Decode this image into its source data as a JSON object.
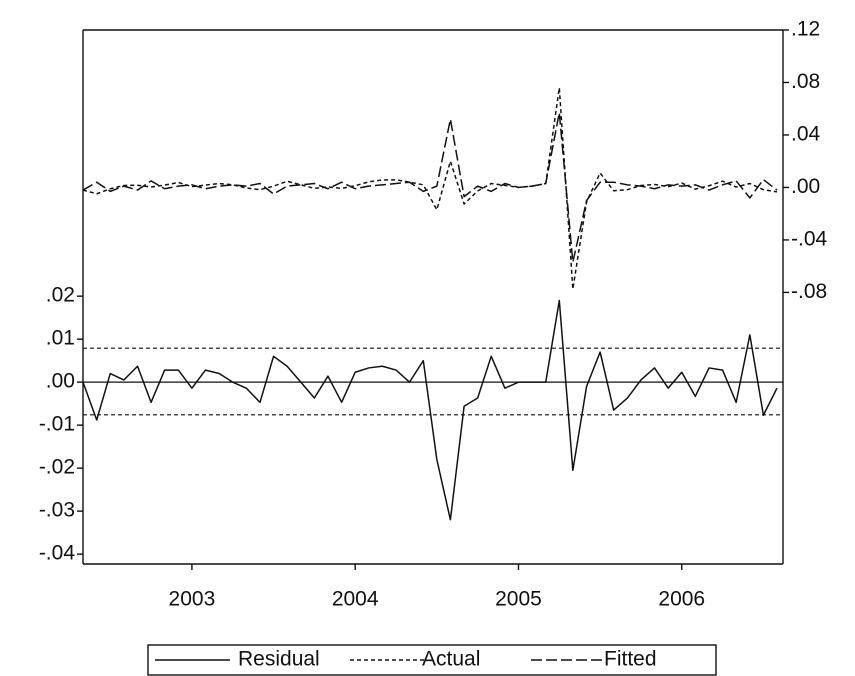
{
  "chart_data": {
    "type": "line",
    "x": [
      2002.833,
      2002.917,
      2003,
      2003.083,
      2003.167,
      2003.25,
      2003.333,
      2003.417,
      2003.5,
      2003.583,
      2003.667,
      2003.75,
      2003.833,
      2003.917,
      2004,
      2004.083,
      2004.167,
      2004.25,
      2004.333,
      2004.417,
      2004.5,
      2004.583,
      2004.667,
      2004.75,
      2004.833,
      2004.917,
      2005,
      2005.083,
      2005.167,
      2005.25,
      2005.333,
      2005.417,
      2005.5,
      2005.583,
      2005.667,
      2005.75,
      2005.833,
      2005.917,
      2006,
      2006.083,
      2006.167,
      2006.25,
      2006.333,
      2006.417,
      2006.5,
      2006.583,
      2006.667,
      2006.75,
      2006.833,
      2006.917,
      2007,
      2007.083
    ],
    "xlim": [
      2002.833,
      2007.12
    ],
    "xticks": [
      {
        "value": 2003.5,
        "label": "2003"
      },
      {
        "value": 2004.5,
        "label": "2004"
      },
      {
        "value": 2005.5,
        "label": "2005"
      },
      {
        "value": 2006.5,
        "label": "2006"
      }
    ],
    "ylim": [
      -0.0423,
      0.0819
    ],
    "yticks": [
      {
        "value": 0.02,
        "label": ".02"
      },
      {
        "value": 0.01,
        "label": ".01"
      },
      {
        "value": 0,
        "label": ".00"
      },
      {
        "value": -0.01,
        "label": "-.01"
      },
      {
        "value": -0.02,
        "label": "-.02"
      },
      {
        "value": -0.03,
        "label": "-.03"
      },
      {
        "value": -0.04,
        "label": "-.04"
      }
    ],
    "y2lim": [
      -0.287,
      0.12
    ],
    "y2ticks": [
      {
        "value": 0.12,
        "label": ".12"
      },
      {
        "value": 0.08,
        "label": ".08"
      },
      {
        "value": 0.04,
        "label": ".04"
      },
      {
        "value": 0,
        "label": ".00"
      },
      {
        "value": -0.04,
        "label": "-.04"
      },
      {
        "value": -0.08,
        "label": "-.08"
      }
    ],
    "reference_lines": [
      0.0079,
      -0.0076
    ],
    "zero_line": true,
    "series": [
      {
        "name": "Residual",
        "color": "#111111",
        "dash": "none",
        "axis": "y",
        "values": [
          0,
          -0.0088,
          0.002,
          0.0005,
          0.0037,
          -0.0047,
          0.0028,
          0.0028,
          -0.0014,
          0.0028,
          0.002,
          0,
          -0.0014,
          -0.0047,
          0.006,
          0.0037,
          0,
          -0.0037,
          0.0014,
          -0.0047,
          0.0023,
          0.0033,
          0.0037,
          0.0028,
          0,
          0.005,
          -0.018,
          -0.032,
          -0.0056,
          -0.0037,
          0.006,
          -0.0014,
          0,
          0,
          0,
          0.019,
          -0.0205,
          -0.001,
          0.007,
          -0.0065,
          -0.0037,
          0.0005,
          0.0033,
          -0.0014,
          0.0023,
          -0.0033,
          0.0033,
          0.0028,
          -0.0047,
          0.011,
          -0.0077,
          -0.0014
        ]
      },
      {
        "name": "Actual",
        "color": "#111111",
        "dash": "4 3",
        "axis": "y2",
        "values": [
          -0.002,
          -0.0048,
          -0.001,
          0.0015,
          0.0017,
          0.0003,
          0.0018,
          0.0038,
          0.0006,
          0.0018,
          0.003,
          0.002,
          -0.0004,
          -0.0017,
          0.001,
          0.0047,
          0.002,
          -0.0007,
          0.0004,
          -0.0007,
          0.0013,
          0.0043,
          0.0057,
          0.0058,
          0.004,
          0.002,
          -0.017,
          0.02,
          -0.0126,
          -0.0027,
          0.003,
          0.0016,
          0,
          0.001,
          0.003,
          0.076,
          -0.0775,
          -0.011,
          0.011,
          -0.0025,
          -0.0017,
          0.0015,
          0.0023,
          0.0006,
          0.0033,
          -0.0013,
          0.0013,
          0.0048,
          0.0003,
          0.003,
          -0.0017,
          -0.0034
        ]
      },
      {
        "name": "Fitted",
        "color": "#111111",
        "dash": "11 4",
        "axis": "y2",
        "values": [
          -0.002,
          0.004,
          -0.003,
          0.001,
          -0.002,
          0.005,
          -0.001,
          0.001,
          0.002,
          -0.001,
          0.001,
          0.002,
          0.001,
          0.003,
          -0.005,
          0.001,
          0.002,
          0.003,
          -0.001,
          0.004,
          -0.001,
          0.001,
          0.002,
          0.003,
          0.004,
          -0.003,
          0.001,
          0.052,
          -0.007,
          0.001,
          -0.003,
          0.003,
          0,
          0.001,
          0.003,
          0.057,
          -0.057,
          -0.01,
          0.004,
          0.004,
          0.002,
          0.001,
          -0.001,
          0.002,
          0.001,
          0.002,
          -0.002,
          0.002,
          0.005,
          -0.008,
          0.006,
          -0.002
        ]
      }
    ]
  }
}
